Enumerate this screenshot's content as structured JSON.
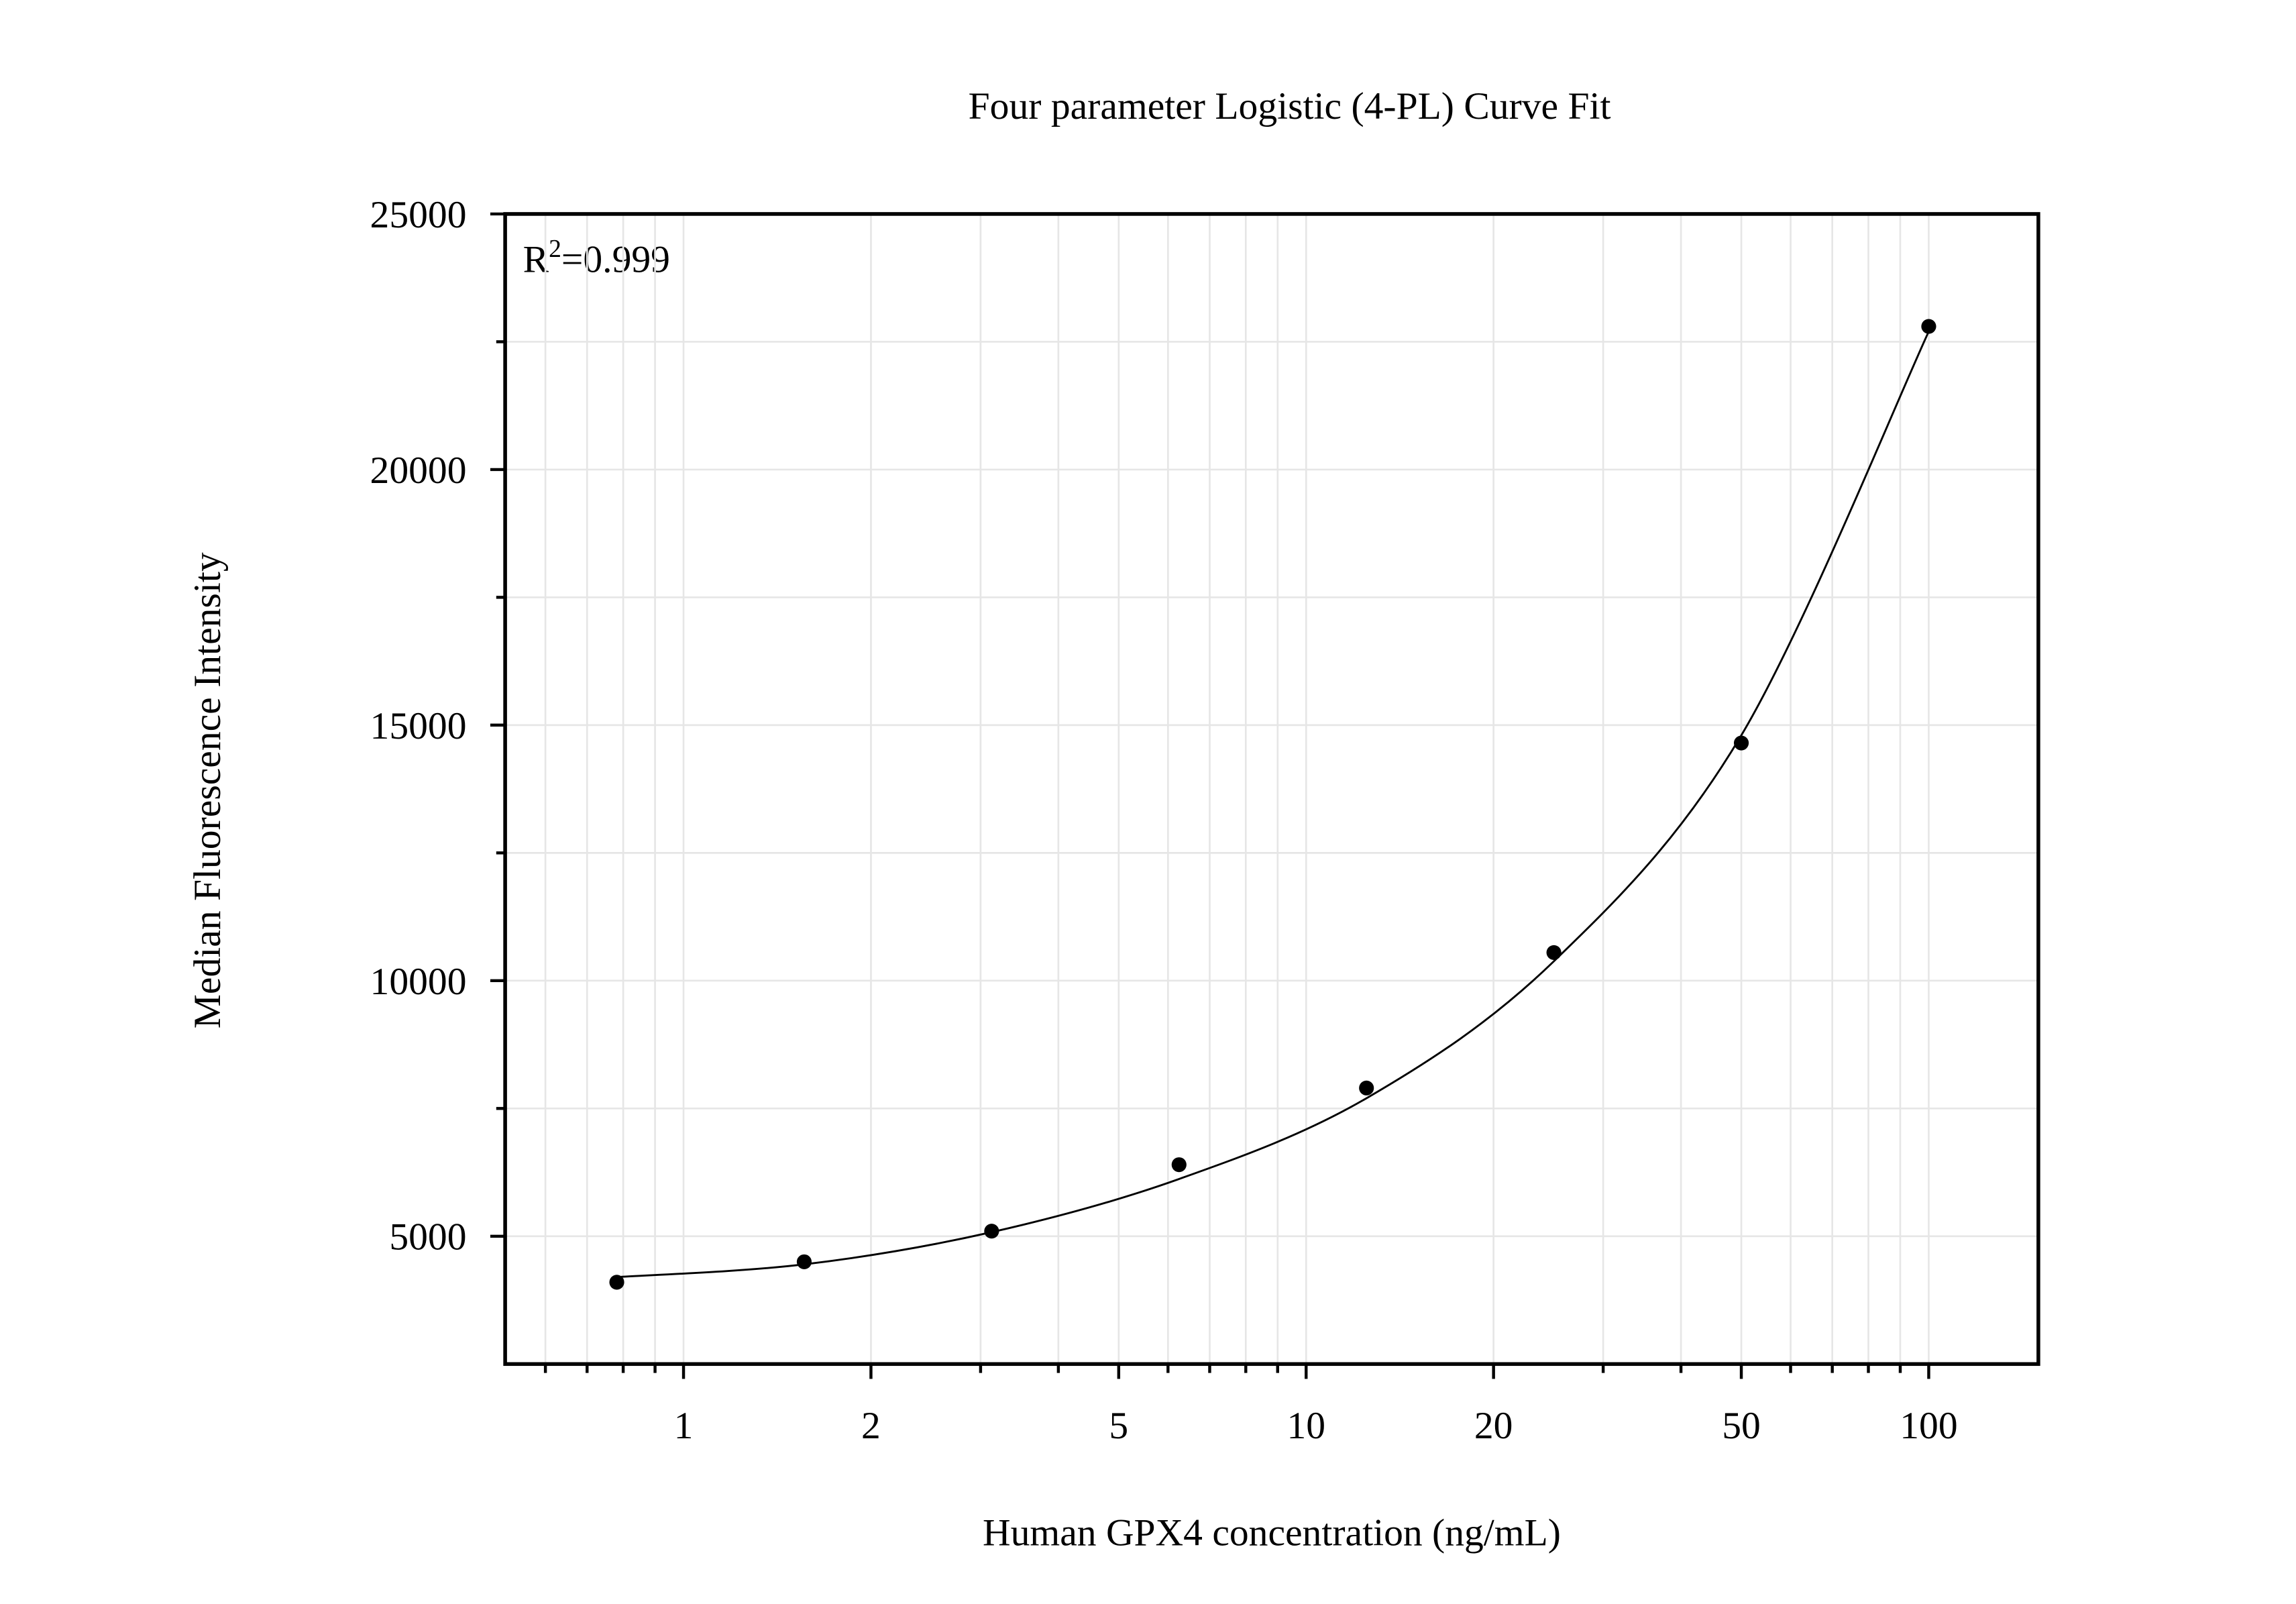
{
  "chart_data": {
    "type": "scatter",
    "title": "Four parameter Logistic (4-PL) Curve Fit",
    "x_label": "Human GPX4 concentration (ng/mL)",
    "y_label": "Median Fluorescence Intensity",
    "annotation": {
      "base": "R",
      "superscript": "2",
      "rest": "=0.999"
    },
    "x_scale": "log",
    "grid": true,
    "x": [
      0.78125,
      1.5625,
      3.125,
      6.25,
      12.5,
      25,
      50,
      100
    ],
    "series": [
      {
        "color": "#000000",
        "marker": "circle",
        "values": [
          4100,
          4500,
          5100,
          6400,
          7900,
          10550,
          14650,
          22800
        ]
      },
      {
        "color": "#000000",
        "marker": "line",
        "values": [
          4200,
          4450,
          5080,
          6120,
          7700,
          10380,
          14800,
          22700
        ]
      }
    ],
    "xlim": [
      0.517,
      150
    ],
    "ylim": [
      2500,
      25000
    ],
    "xticks": [
      1,
      2,
      5,
      10,
      20,
      50,
      100
    ],
    "xminorticks": [
      0.6,
      0.7,
      0.8,
      0.9,
      3,
      4,
      6,
      7,
      8,
      9,
      30,
      40,
      60,
      70,
      80,
      90
    ],
    "yticks": [
      5000,
      10000,
      15000,
      20000,
      25000
    ],
    "yminorticks": [
      7500,
      12500,
      17500,
      22500
    ]
  }
}
